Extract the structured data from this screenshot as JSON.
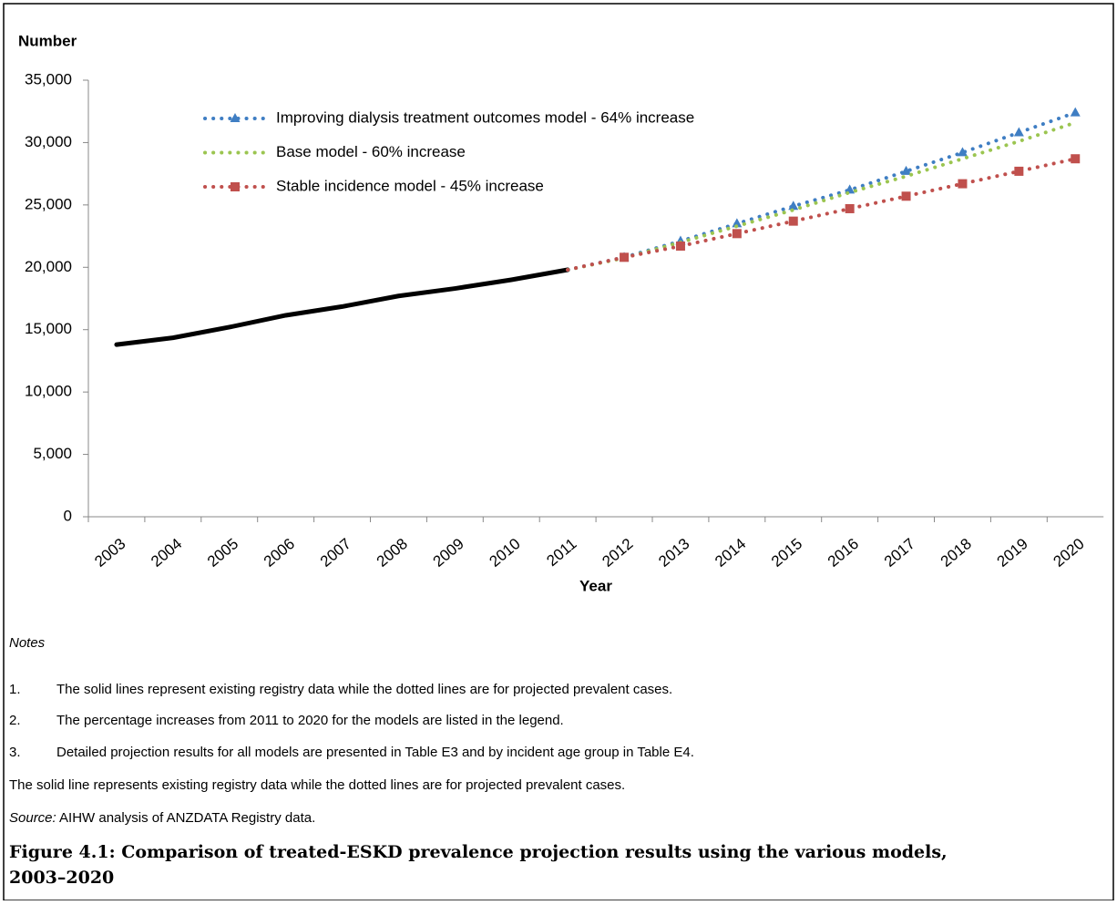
{
  "chart_data": {
    "type": "line",
    "y_label": "Number",
    "x_label": "Year",
    "categories": [
      "2003",
      "2004",
      "2005",
      "2006",
      "2007",
      "2008",
      "2009",
      "2010",
      "2011",
      "2012",
      "2013",
      "2014",
      "2015",
      "2016",
      "2017",
      "2018",
      "2019",
      "2020"
    ],
    "series": [
      {
        "color": "#000000",
        "style": "solid",
        "values": [
          13800,
          14350,
          15200,
          16150,
          16850,
          17700,
          18300,
          19000,
          19800,
          null,
          null,
          null,
          null,
          null,
          null,
          null,
          null,
          null
        ]
      },
      {
        "name": "Improving dialysis treatment outcomes model - 64% increase",
        "color": "#3f7ec3",
        "style": "dotted",
        "marker": "triangle",
        "values": [
          null,
          null,
          null,
          null,
          null,
          null,
          null,
          null,
          19800,
          20800,
          22100,
          23500,
          24900,
          26200,
          27700,
          29200,
          30800,
          32400
        ]
      },
      {
        "name": "Base model - 60% increase",
        "color": "#9bc550",
        "style": "dotted",
        "values": [
          null,
          null,
          null,
          null,
          null,
          null,
          null,
          null,
          19800,
          20750,
          22000,
          23300,
          24600,
          26000,
          27300,
          28700,
          30100,
          31600
        ]
      },
      {
        "name": "Stable incidence model - 45% increase",
        "color": "#c0504d",
        "style": "dotted",
        "marker": "square",
        "values": [
          null,
          null,
          null,
          null,
          null,
          null,
          null,
          null,
          19800,
          20800,
          21700,
          22700,
          23700,
          24700,
          25700,
          26700,
          27700,
          28700
        ]
      }
    ],
    "ylim": [
      0,
      35000
    ],
    "yticks": [
      0,
      {
        "value": 5000,
        "label": "5,000"
      },
      {
        "value": 10000,
        "label": "10,000"
      },
      {
        "value": 15000,
        "label": "15,000"
      },
      {
        "value": 20000,
        "label": "20,000"
      },
      {
        "value": 25000,
        "label": "25,000"
      },
      {
        "value": 30000,
        "label": "30,000"
      },
      {
        "value": 35000,
        "label": "35,000"
      }
    ],
    "grid": false,
    "legend": "top-left"
  },
  "notes": {
    "heading": "Notes",
    "items": [
      [
        "1.",
        "The solid lines represent existing registry data while the dotted lines are for projected prevalent cases."
      ],
      [
        "2.",
        "The percentage increases from 2011 to 2020 for the models are listed in the legend."
      ],
      [
        "3.",
        "Detailed projection results for all models are presented in Table E3 and by incident age group in Table E4."
      ]
    ],
    "extra": "The solid line represents existing registry data while the dotted lines are for projected prevalent cases.",
    "source_label": "Source:",
    "source": " AIHW analysis of ANZDATA Registry data."
  },
  "caption": [
    "Figure 4.1: Comparison of treated-ESKD prevalence projection results using the various models,",
    "2003–2020"
  ]
}
